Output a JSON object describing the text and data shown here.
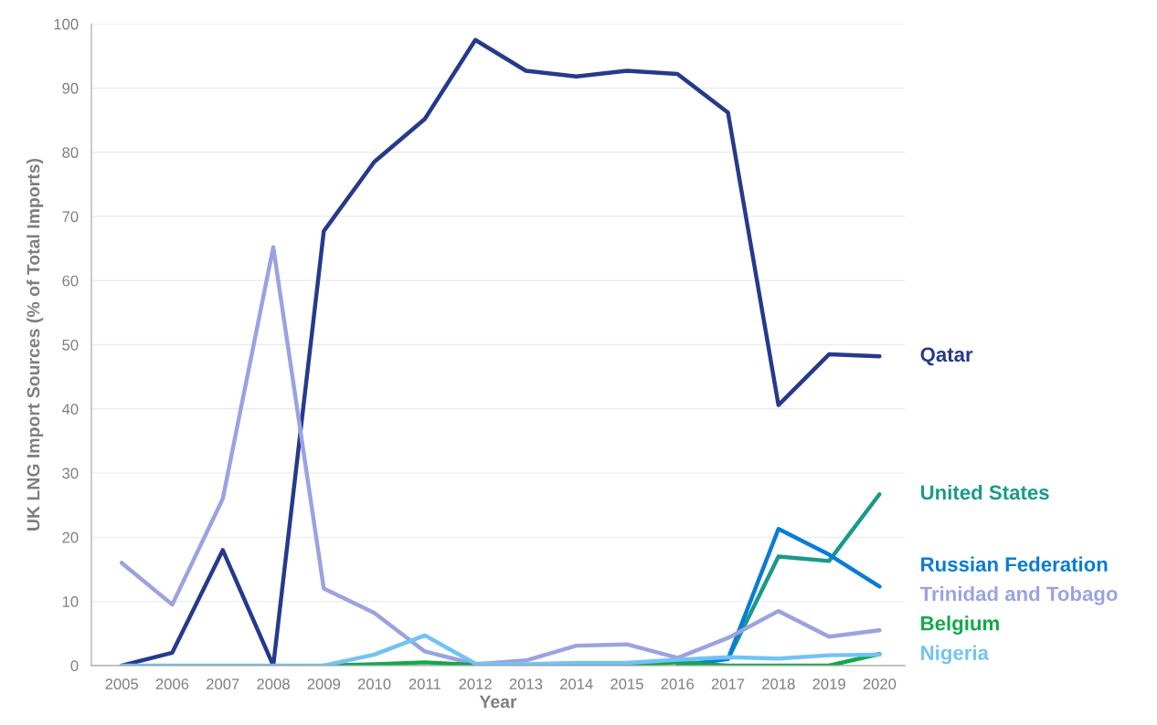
{
  "chart_data": {
    "type": "line",
    "xlabel": "Year",
    "ylabel": "UK LNG Import Sources (% of Total Imports)",
    "categories": [
      "2005",
      "2006",
      "2007",
      "2008",
      "2009",
      "2010",
      "2011",
      "2012",
      "2013",
      "2014",
      "2015",
      "2016",
      "2017",
      "2018",
      "2019",
      "2020"
    ],
    "ylim": [
      0,
      100
    ],
    "yticks": [
      0,
      10,
      20,
      30,
      40,
      50,
      60,
      70,
      80,
      90,
      100
    ],
    "grid": "y",
    "marker": "none",
    "line_style": "solid",
    "series": [
      {
        "name": "Qatar",
        "color": "#263a8c",
        "values": [
          0,
          2,
          18,
          0,
          67.7,
          78.5,
          85.2,
          97.5,
          92.7,
          91.8,
          92.7,
          92.2,
          86.2,
          40.6,
          48.5,
          48.2
        ]
      },
      {
        "name": "United States",
        "color": "#1a9a8a",
        "values": [
          null,
          null,
          null,
          null,
          null,
          null,
          null,
          null,
          null,
          null,
          null,
          null,
          1,
          17,
          16.3,
          26.7
        ]
      },
      {
        "name": "Russian Federation",
        "color": "#0a7cd4",
        "values": [
          null,
          null,
          null,
          null,
          null,
          null,
          null,
          null,
          null,
          null,
          null,
          0,
          1,
          21.3,
          17.3,
          12.3
        ]
      },
      {
        "name": "Trinidad and Tobago",
        "color": "#9aa3e0",
        "values": [
          16,
          9.5,
          26,
          65.2,
          12,
          8.2,
          2.2,
          0.2,
          0.8,
          3.1,
          3.3,
          1.2,
          4.3,
          8.5,
          4.5,
          5.5
        ]
      },
      {
        "name": "Belgium",
        "color": "#12a84a",
        "values": [
          null,
          null,
          null,
          null,
          0,
          0.2,
          0.5,
          0.1,
          0,
          0,
          0,
          0.5,
          0,
          0,
          0,
          1.8
        ]
      },
      {
        "name": "Nigeria",
        "color": "#72c2f5",
        "values": [
          0,
          0,
          0,
          0,
          0,
          1.7,
          4.7,
          0.3,
          0.2,
          0.4,
          0.4,
          0.9,
          1.3,
          1.1,
          1.6,
          1.7
        ]
      }
    ]
  }
}
